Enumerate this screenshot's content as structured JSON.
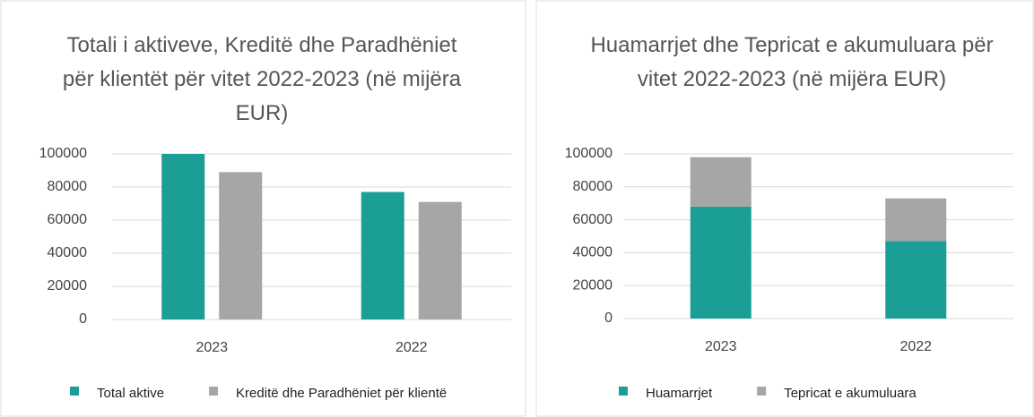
{
  "chart_data": [
    {
      "type": "bar",
      "stacked": false,
      "title": "Totali i aktiveve, Kreditë dhe Paradhëniet për klientët për vitet 2022-2023 (në mijëra EUR)",
      "categories": [
        "2023",
        "2022"
      ],
      "series": [
        {
          "name": "Total aktive",
          "color": "#1a9e96",
          "values": [
            100000,
            77000
          ]
        },
        {
          "name": "Kreditë dhe Paradhëniet për klientë",
          "color": "#a6a6a6",
          "values": [
            89000,
            71000
          ]
        }
      ],
      "ylim": [
        0,
        100000
      ],
      "yticks": [
        0,
        20000,
        40000,
        60000,
        80000,
        100000
      ],
      "grid": true,
      "legend": "bottom"
    },
    {
      "type": "bar",
      "stacked": true,
      "title": "Huamarrjet dhe Tepricat e akumuluara për vitet 2022-2023 (në mijëra EUR)",
      "categories": [
        "2023",
        "2022"
      ],
      "series": [
        {
          "name": "Huamarrjet",
          "color": "#1a9e96",
          "values": [
            68000,
            47000
          ]
        },
        {
          "name": "Tepricat e akumuluara",
          "color": "#a6a6a6",
          "values": [
            30000,
            26000
          ]
        }
      ],
      "ylim": [
        0,
        100000
      ],
      "yticks": [
        0,
        20000,
        40000,
        60000,
        80000,
        100000
      ],
      "grid": true,
      "legend": "bottom"
    }
  ]
}
